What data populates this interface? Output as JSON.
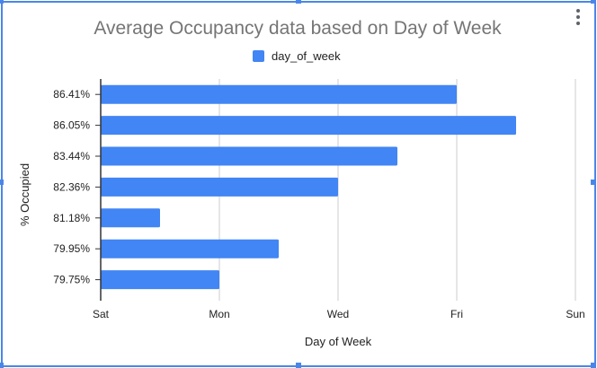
{
  "chart_data": {
    "type": "bar",
    "orientation": "horizontal",
    "title": "Average Occupancy data based on Day of Week",
    "xlabel": "Day of Week",
    "ylabel": "% Occupied",
    "categories": [
      "86.41%",
      "86.05%",
      "83.44%",
      "82.36%",
      "81.18%",
      "79.95%",
      "79.75%"
    ],
    "series": [
      {
        "name": "day_of_week",
        "values": [
          6,
          7,
          5,
          4,
          1,
          3,
          2
        ]
      }
    ],
    "x_ticks": [
      {
        "value": 0,
        "label": "Sat"
      },
      {
        "value": 2,
        "label": "Mon"
      },
      {
        "value": 4,
        "label": "Wed"
      },
      {
        "value": 6,
        "label": "Fri"
      },
      {
        "value": 8,
        "label": "Sun"
      }
    ],
    "xlim": [
      0,
      8
    ],
    "grid": true,
    "legend_position": "top",
    "colors": {
      "bar": "#4285f4",
      "title": "#757575",
      "grid": "#cccccc",
      "axis": "#333333",
      "text": "#222222",
      "selection": "#4a86e8"
    }
  }
}
